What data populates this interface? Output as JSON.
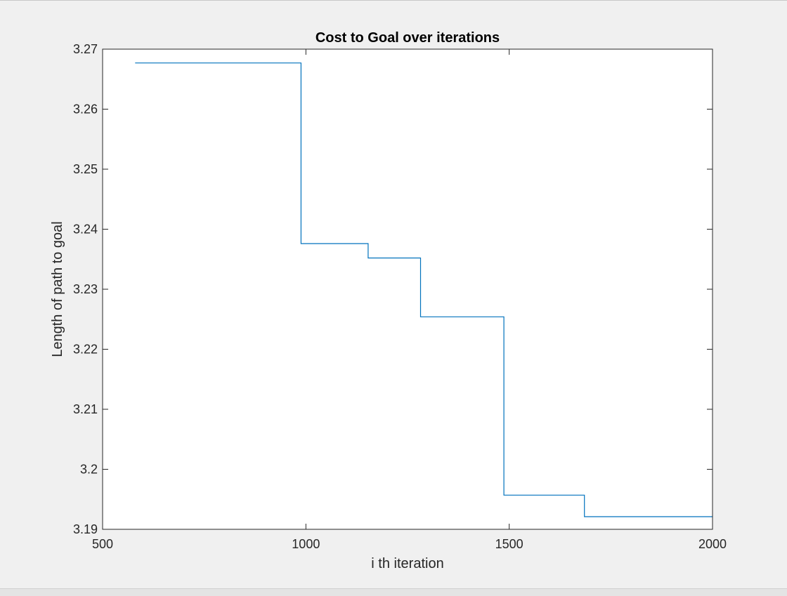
{
  "chart_data": {
    "type": "line",
    "title": "Cost to Goal over iterations",
    "xlabel": "i th iteration",
    "ylabel": "Length of path to goal",
    "xlim": [
      500,
      2000
    ],
    "ylim": [
      3.19,
      3.27
    ],
    "xticks": [
      500,
      1000,
      1500,
      2000
    ],
    "yticks": [
      3.19,
      3.2,
      3.21,
      3.22,
      3.23,
      3.24,
      3.25,
      3.26,
      3.27
    ],
    "xtick_labels": [
      "500",
      "1000",
      "1500",
      "2000"
    ],
    "ytick_labels": [
      "3.19",
      "3.2",
      "3.21",
      "3.22",
      "3.23",
      "3.24",
      "3.25",
      "3.26",
      "3.27"
    ],
    "grid": false,
    "box": true,
    "step": true,
    "line_color": "#0072BD",
    "series": [
      {
        "x": [
          580,
          988,
          988,
          1153,
          1153,
          1282,
          1282,
          1487,
          1487,
          1685,
          1685,
          2000
        ],
        "y": [
          3.2677,
          3.2677,
          3.2376,
          3.2376,
          3.2352,
          3.2352,
          3.2254,
          3.2254,
          3.1957,
          3.1957,
          3.1921,
          3.1921
        ]
      }
    ]
  }
}
